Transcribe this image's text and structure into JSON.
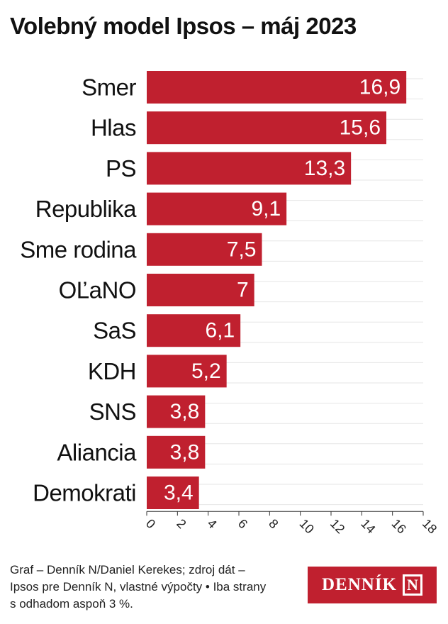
{
  "title": "Volebný model Ipsos – máj 2023",
  "chart_data": {
    "type": "bar",
    "orientation": "horizontal",
    "categories": [
      "Smer",
      "Hlas",
      "PS",
      "Republika",
      "Sme rodina",
      "OĽaNO",
      "SaS",
      "KDH",
      "SNS",
      "Aliancia",
      "Demokrati"
    ],
    "values": [
      16.9,
      15.6,
      13.3,
      9.1,
      7.5,
      7,
      6.1,
      5.2,
      3.8,
      3.8,
      3.4
    ],
    "value_labels": [
      "16,9",
      "15,6",
      "13,3",
      "9,1",
      "7,5",
      "7",
      "6,1",
      "5,2",
      "3,8",
      "3,8",
      "3,4"
    ],
    "xlim": [
      0,
      18
    ],
    "xticks": [
      0,
      2,
      4,
      6,
      8,
      10,
      12,
      14,
      16,
      18
    ],
    "grid": true,
    "bar_color": "#c0202f"
  },
  "footer": {
    "line1": "Graf – Denník N/Daniel Kerekes; zdroj dát –",
    "line2": "Ipsos pre Denník N, vlastné výpočty • Iba strany",
    "line3": "s odhadom aspoň 3 %."
  },
  "logo": {
    "text": "DENNÍK",
    "mark": "N"
  }
}
